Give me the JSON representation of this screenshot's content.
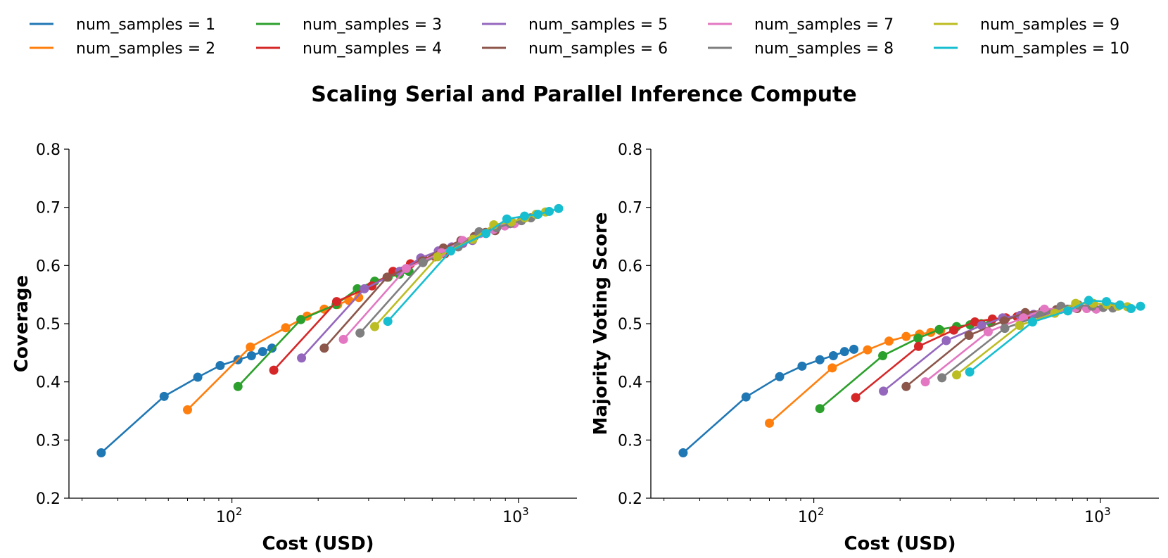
{
  "suptitle": "Scaling Serial and Parallel Inference Compute",
  "legend": [
    {
      "label": "num_samples = 1",
      "color": "#1f77b4"
    },
    {
      "label": "num_samples = 2",
      "color": "#ff7f0e"
    },
    {
      "label": "num_samples = 3",
      "color": "#2ca02c"
    },
    {
      "label": "num_samples = 4",
      "color": "#d62728"
    },
    {
      "label": "num_samples = 5",
      "color": "#9467bd"
    },
    {
      "label": "num_samples = 6",
      "color": "#8c564b"
    },
    {
      "label": "num_samples = 7",
      "color": "#e377c2"
    },
    {
      "label": "num_samples = 8",
      "color": "#7f7f7f"
    },
    {
      "label": "num_samples = 9",
      "color": "#bcbd22"
    },
    {
      "label": "num_samples = 10",
      "color": "#17becf"
    }
  ],
  "chart_data": [
    {
      "type": "line",
      "title": "",
      "xlabel": "Cost (USD)",
      "ylabel": "Coverage",
      "xscale": "log",
      "xlim": [
        27,
        1600
      ],
      "ylim": [
        0.2,
        0.8
      ],
      "yticks": [
        "0.2",
        "0.3",
        "0.4",
        "0.5",
        "0.6",
        "0.7",
        "0.8"
      ],
      "xticks": [
        {
          "value": 100,
          "base": "10",
          "exp": "2"
        },
        {
          "value": 1000,
          "base": "10",
          "exp": "3"
        }
      ],
      "series": [
        {
          "name": "num_samples = 1",
          "color": "#1f77b4",
          "x": [
            35,
            58,
            76,
            91,
            105,
            117,
            128,
            138
          ],
          "y": [
            0.278,
            0.375,
            0.408,
            0.428,
            0.438,
            0.445,
            0.452,
            0.458
          ]
        },
        {
          "name": "num_samples = 2",
          "color": "#ff7f0e",
          "x": [
            70,
            116,
            154,
            183,
            210,
            234,
            256,
            277
          ],
          "y": [
            0.352,
            0.46,
            0.493,
            0.513,
            0.525,
            0.533,
            0.54,
            0.545
          ]
        },
        {
          "name": "num_samples = 3",
          "color": "#2ca02c",
          "x": [
            105,
            174,
            231,
            274,
            315,
            351,
            384,
            415
          ],
          "y": [
            0.392,
            0.507,
            0.533,
            0.56,
            0.573,
            0.58,
            0.585,
            0.59
          ]
        },
        {
          "name": "num_samples = 4",
          "color": "#d62728",
          "x": [
            140,
            232,
            308,
            365,
            420,
            468,
            512,
            553
          ],
          "y": [
            0.42,
            0.538,
            0.565,
            0.59,
            0.603,
            0.61,
            0.615,
            0.62
          ]
        },
        {
          "name": "num_samples = 5",
          "color": "#9467bd",
          "x": [
            175,
            290,
            385,
            456,
            525,
            585,
            640,
            691
          ],
          "y": [
            0.441,
            0.56,
            0.59,
            0.613,
            0.625,
            0.632,
            0.638,
            0.643
          ]
        },
        {
          "name": "num_samples = 6",
          "color": "#8c564b",
          "x": [
            210,
            348,
            462,
            547,
            630,
            702,
            768,
            829
          ],
          "y": [
            0.458,
            0.58,
            0.608,
            0.63,
            0.643,
            0.65,
            0.657,
            0.66
          ]
        },
        {
          "name": "num_samples = 7",
          "color": "#e377c2",
          "x": [
            245,
            406,
            539,
            638,
            735,
            819,
            896,
            967
          ],
          "y": [
            0.473,
            0.595,
            0.622,
            0.643,
            0.655,
            0.662,
            0.668,
            0.672
          ]
        },
        {
          "name": "num_samples = 8",
          "color": "#7f7f7f",
          "x": [
            280,
            464,
            616,
            729,
            840,
            936,
            1024,
            1105
          ],
          "y": [
            0.484,
            0.605,
            0.632,
            0.658,
            0.665,
            0.672,
            0.677,
            0.682
          ]
        },
        {
          "name": "num_samples = 9",
          "color": "#bcbd22",
          "x": [
            315,
            522,
            693,
            820,
            945,
            1053,
            1152,
            1243
          ],
          "y": [
            0.495,
            0.615,
            0.645,
            0.67,
            0.675,
            0.682,
            0.688,
            0.692
          ]
        },
        {
          "name": "num_samples = 10",
          "color": "#17becf",
          "x": [
            350,
            580,
            770,
            911,
            1050,
            1170,
            1280,
            1381
          ],
          "y": [
            0.504,
            0.625,
            0.655,
            0.68,
            0.685,
            0.688,
            0.693,
            0.698
          ]
        }
      ]
    },
    {
      "type": "line",
      "title": "",
      "xlabel": "Cost (USD)",
      "ylabel": "Majority Voting Score",
      "xscale": "log",
      "xlim": [
        27,
        1600
      ],
      "ylim": [
        0.2,
        0.8
      ],
      "yticks": [
        "0.2",
        "0.3",
        "0.4",
        "0.5",
        "0.6",
        "0.7",
        "0.8"
      ],
      "xticks": [
        {
          "value": 100,
          "base": "10",
          "exp": "2"
        },
        {
          "value": 1000,
          "base": "10",
          "exp": "3"
        }
      ],
      "series": [
        {
          "name": "num_samples = 1",
          "color": "#1f77b4",
          "x": [
            35,
            58,
            76,
            91,
            105,
            117,
            128,
            138
          ],
          "y": [
            0.278,
            0.374,
            0.409,
            0.427,
            0.438,
            0.445,
            0.452,
            0.456
          ]
        },
        {
          "name": "num_samples = 2",
          "color": "#ff7f0e",
          "x": [
            70,
            116,
            154,
            183,
            210,
            234,
            256,
            277
          ],
          "y": [
            0.329,
            0.424,
            0.455,
            0.47,
            0.478,
            0.482,
            0.485,
            0.488
          ]
        },
        {
          "name": "num_samples = 3",
          "color": "#2ca02c",
          "x": [
            105,
            174,
            231,
            274,
            315,
            351,
            384,
            415
          ],
          "y": [
            0.354,
            0.445,
            0.475,
            0.49,
            0.495,
            0.498,
            0.5,
            0.502
          ]
        },
        {
          "name": "num_samples = 4",
          "color": "#d62728",
          "x": [
            140,
            232,
            308,
            365,
            420,
            468,
            512,
            553
          ],
          "y": [
            0.373,
            0.461,
            0.489,
            0.503,
            0.508,
            0.51,
            0.512,
            0.514
          ]
        },
        {
          "name": "num_samples = 5",
          "color": "#9467bd",
          "x": [
            175,
            290,
            385,
            456,
            525,
            585,
            640,
            691
          ],
          "y": [
            0.384,
            0.471,
            0.497,
            0.51,
            0.514,
            0.516,
            0.518,
            0.519
          ]
        },
        {
          "name": "num_samples = 6",
          "color": "#8c564b",
          "x": [
            210,
            348,
            462,
            547,
            630,
            702,
            768,
            829
          ],
          "y": [
            0.392,
            0.48,
            0.505,
            0.519,
            0.522,
            0.524,
            0.525,
            0.526
          ]
        },
        {
          "name": "num_samples = 7",
          "color": "#e377c2",
          "x": [
            245,
            406,
            539,
            638,
            735,
            819,
            896,
            967
          ],
          "y": [
            0.4,
            0.486,
            0.51,
            0.525,
            0.526,
            0.527,
            0.526,
            0.525
          ]
        },
        {
          "name": "num_samples = 8",
          "color": "#7f7f7f",
          "x": [
            280,
            464,
            616,
            729,
            840,
            936,
            1024,
            1105
          ],
          "y": [
            0.407,
            0.492,
            0.514,
            0.53,
            0.532,
            0.53,
            0.528,
            0.527
          ]
        },
        {
          "name": "num_samples = 9",
          "color": "#bcbd22",
          "x": [
            315,
            522,
            693,
            820,
            945,
            1053,
            1152,
            1243
          ],
          "y": [
            0.412,
            0.497,
            0.518,
            0.535,
            0.535,
            0.533,
            0.53,
            0.529
          ]
        },
        {
          "name": "num_samples = 10",
          "color": "#17becf",
          "x": [
            350,
            580,
            770,
            911,
            1050,
            1170,
            1280,
            1381
          ],
          "y": [
            0.417,
            0.503,
            0.522,
            0.54,
            0.538,
            0.532,
            0.526,
            0.53
          ]
        }
      ]
    }
  ]
}
